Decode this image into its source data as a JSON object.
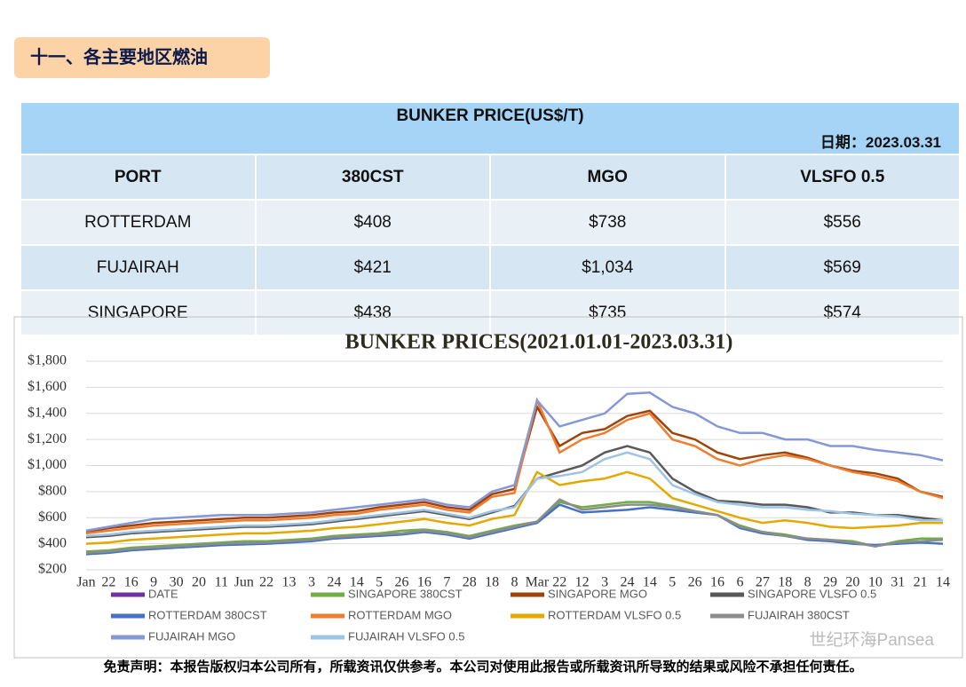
{
  "section_title": "十一、各主要地区燃油",
  "table": {
    "title": "BUNKER PRICE(US$/T)",
    "date_label": "日期：",
    "date": "2023.03.31",
    "header": [
      "PORT",
      "380CST",
      "MGO",
      "VLSFO 0.5"
    ],
    "rows": [
      [
        "ROTTERDAM",
        "$408",
        "$738",
        "$556"
      ],
      [
        "FUJAIRAH",
        "$421",
        "$1,034",
        "$569"
      ],
      [
        "SINGAPORE",
        "$438",
        "$735",
        "$574"
      ]
    ]
  },
  "chart_data": {
    "type": "line",
    "title": "BUNKER PRICES(2021.01.01-2023.03.31)",
    "categories": [
      "Jan",
      "22",
      "16",
      "9",
      "30",
      "20",
      "11",
      "Jun",
      "22",
      "13",
      "3",
      "24",
      "14",
      "5",
      "26",
      "16",
      "7",
      "28",
      "18",
      "8",
      "Mar",
      "22",
      "12",
      "3",
      "24",
      "14",
      "5",
      "26",
      "16",
      "6",
      "27",
      "18",
      "8",
      "29",
      "20",
      "10",
      "31",
      "21",
      "14"
    ],
    "ylim": [
      200,
      1800
    ],
    "yticks": [
      {
        "value": 200,
        "label": "$200"
      },
      {
        "value": 400,
        "label": "$400"
      },
      {
        "value": 600,
        "label": "$600"
      },
      {
        "value": 800,
        "label": "$800"
      },
      {
        "value": 1000,
        "label": "$1,000"
      },
      {
        "value": 1200,
        "label": "$1,200"
      },
      {
        "value": 1400,
        "label": "$1,400"
      },
      {
        "value": 1600,
        "label": "$1,600"
      },
      {
        "value": 1800,
        "label": "$1,800"
      }
    ],
    "grid": true,
    "series": [
      {
        "name": "DATE",
        "color": "#7030a0"
      },
      {
        "name": "SINGAPORE 380CST",
        "color": "#70ad47",
        "values": [
          340,
          350,
          370,
          380,
          390,
          400,
          410,
          420,
          420,
          430,
          440,
          460,
          470,
          480,
          500,
          510,
          490,
          460,
          500,
          540,
          570,
          720,
          680,
          700,
          720,
          720,
          690,
          650,
          620,
          540,
          490,
          470,
          440,
          430,
          420,
          380,
          420,
          440,
          440
        ]
      },
      {
        "name": "SINGAPORE MGO",
        "color": "#a0430a",
        "values": [
          490,
          520,
          540,
          560,
          570,
          580,
          590,
          600,
          600,
          610,
          620,
          640,
          650,
          680,
          700,
          720,
          680,
          660,
          780,
          820,
          1450,
          1150,
          1250,
          1280,
          1380,
          1420,
          1250,
          1200,
          1100,
          1050,
          1080,
          1100,
          1060,
          1000,
          960,
          940,
          900,
          800,
          760
        ]
      },
      {
        "name": "SINGAPORE VLSFO 0.5",
        "color": "#595959",
        "values": [
          450,
          460,
          480,
          490,
          500,
          510,
          520,
          530,
          530,
          540,
          550,
          570,
          590,
          610,
          630,
          650,
          620,
          590,
          640,
          690,
          900,
          950,
          1000,
          1100,
          1150,
          1100,
          900,
          800,
          730,
          720,
          700,
          700,
          680,
          640,
          640,
          620,
          620,
          600,
          580
        ]
      },
      {
        "name": "ROTTERDAM 380CST",
        "color": "#4472c4",
        "values": [
          320,
          330,
          350,
          360,
          370,
          380,
          390,
          395,
          400,
          410,
          420,
          440,
          450,
          460,
          470,
          490,
          470,
          440,
          480,
          520,
          560,
          700,
          640,
          650,
          660,
          680,
          660,
          640,
          620,
          520,
          480,
          460,
          430,
          420,
          400,
          390,
          400,
          410,
          400
        ]
      },
      {
        "name": "ROTTERDAM MGO",
        "color": "#ed7d31",
        "values": [
          480,
          500,
          520,
          540,
          550,
          560,
          570,
          580,
          580,
          590,
          600,
          620,
          630,
          660,
          680,
          700,
          660,
          640,
          760,
          790,
          1500,
          1100,
          1200,
          1250,
          1350,
          1400,
          1200,
          1150,
          1050,
          1000,
          1050,
          1080,
          1050,
          1000,
          950,
          920,
          880,
          800,
          750
        ]
      },
      {
        "name": "ROTTERDAM VLSFO 0.5",
        "color": "#e5a800",
        "values": [
          400,
          410,
          430,
          440,
          450,
          460,
          470,
          480,
          480,
          490,
          500,
          520,
          530,
          550,
          570,
          590,
          560,
          540,
          590,
          620,
          950,
          850,
          880,
          900,
          950,
          900,
          750,
          700,
          650,
          600,
          560,
          580,
          560,
          530,
          520,
          530,
          540,
          560,
          560
        ]
      },
      {
        "name": "FUJAIRAH  380CST",
        "color": "#8c8c8c",
        "values": [
          330,
          340,
          360,
          370,
          380,
          390,
          400,
          405,
          410,
          420,
          430,
          450,
          460,
          470,
          480,
          500,
          480,
          450,
          490,
          530,
          570,
          740,
          660,
          680,
          700,
          700,
          680,
          650,
          620,
          530,
          490,
          460,
          440,
          430,
          410,
          380,
          410,
          420,
          430
        ]
      },
      {
        "name": "FUJAIRAH MGO",
        "color": "#8497d6",
        "values": [
          500,
          530,
          560,
          590,
          600,
          610,
          620,
          620,
          620,
          630,
          640,
          660,
          680,
          700,
          720,
          740,
          700,
          680,
          800,
          850,
          1500,
          1300,
          1350,
          1400,
          1550,
          1560,
          1450,
          1400,
          1300,
          1250,
          1250,
          1200,
          1200,
          1150,
          1150,
          1120,
          1100,
          1080,
          1040
        ]
      },
      {
        "name": "FUJAIRAH VLSFO 0.5",
        "color": "#9dc3e6",
        "values": [
          460,
          470,
          490,
          500,
          510,
          520,
          530,
          540,
          540,
          550,
          560,
          580,
          600,
          620,
          640,
          660,
          630,
          600,
          650,
          680,
          900,
          920,
          950,
          1050,
          1100,
          1050,
          850,
          780,
          720,
          700,
          680,
          680,
          660,
          650,
          630,
          620,
          610,
          580,
          580
        ]
      }
    ]
  },
  "footer": {
    "disclaimer": "免责声明：本报告版权归本公司所有，所载资讯仅供参考。本公司对使用此报告或所载资讯所导致的结果或风险不承担任何责任。",
    "watermark": "世纪环海Pansea"
  }
}
